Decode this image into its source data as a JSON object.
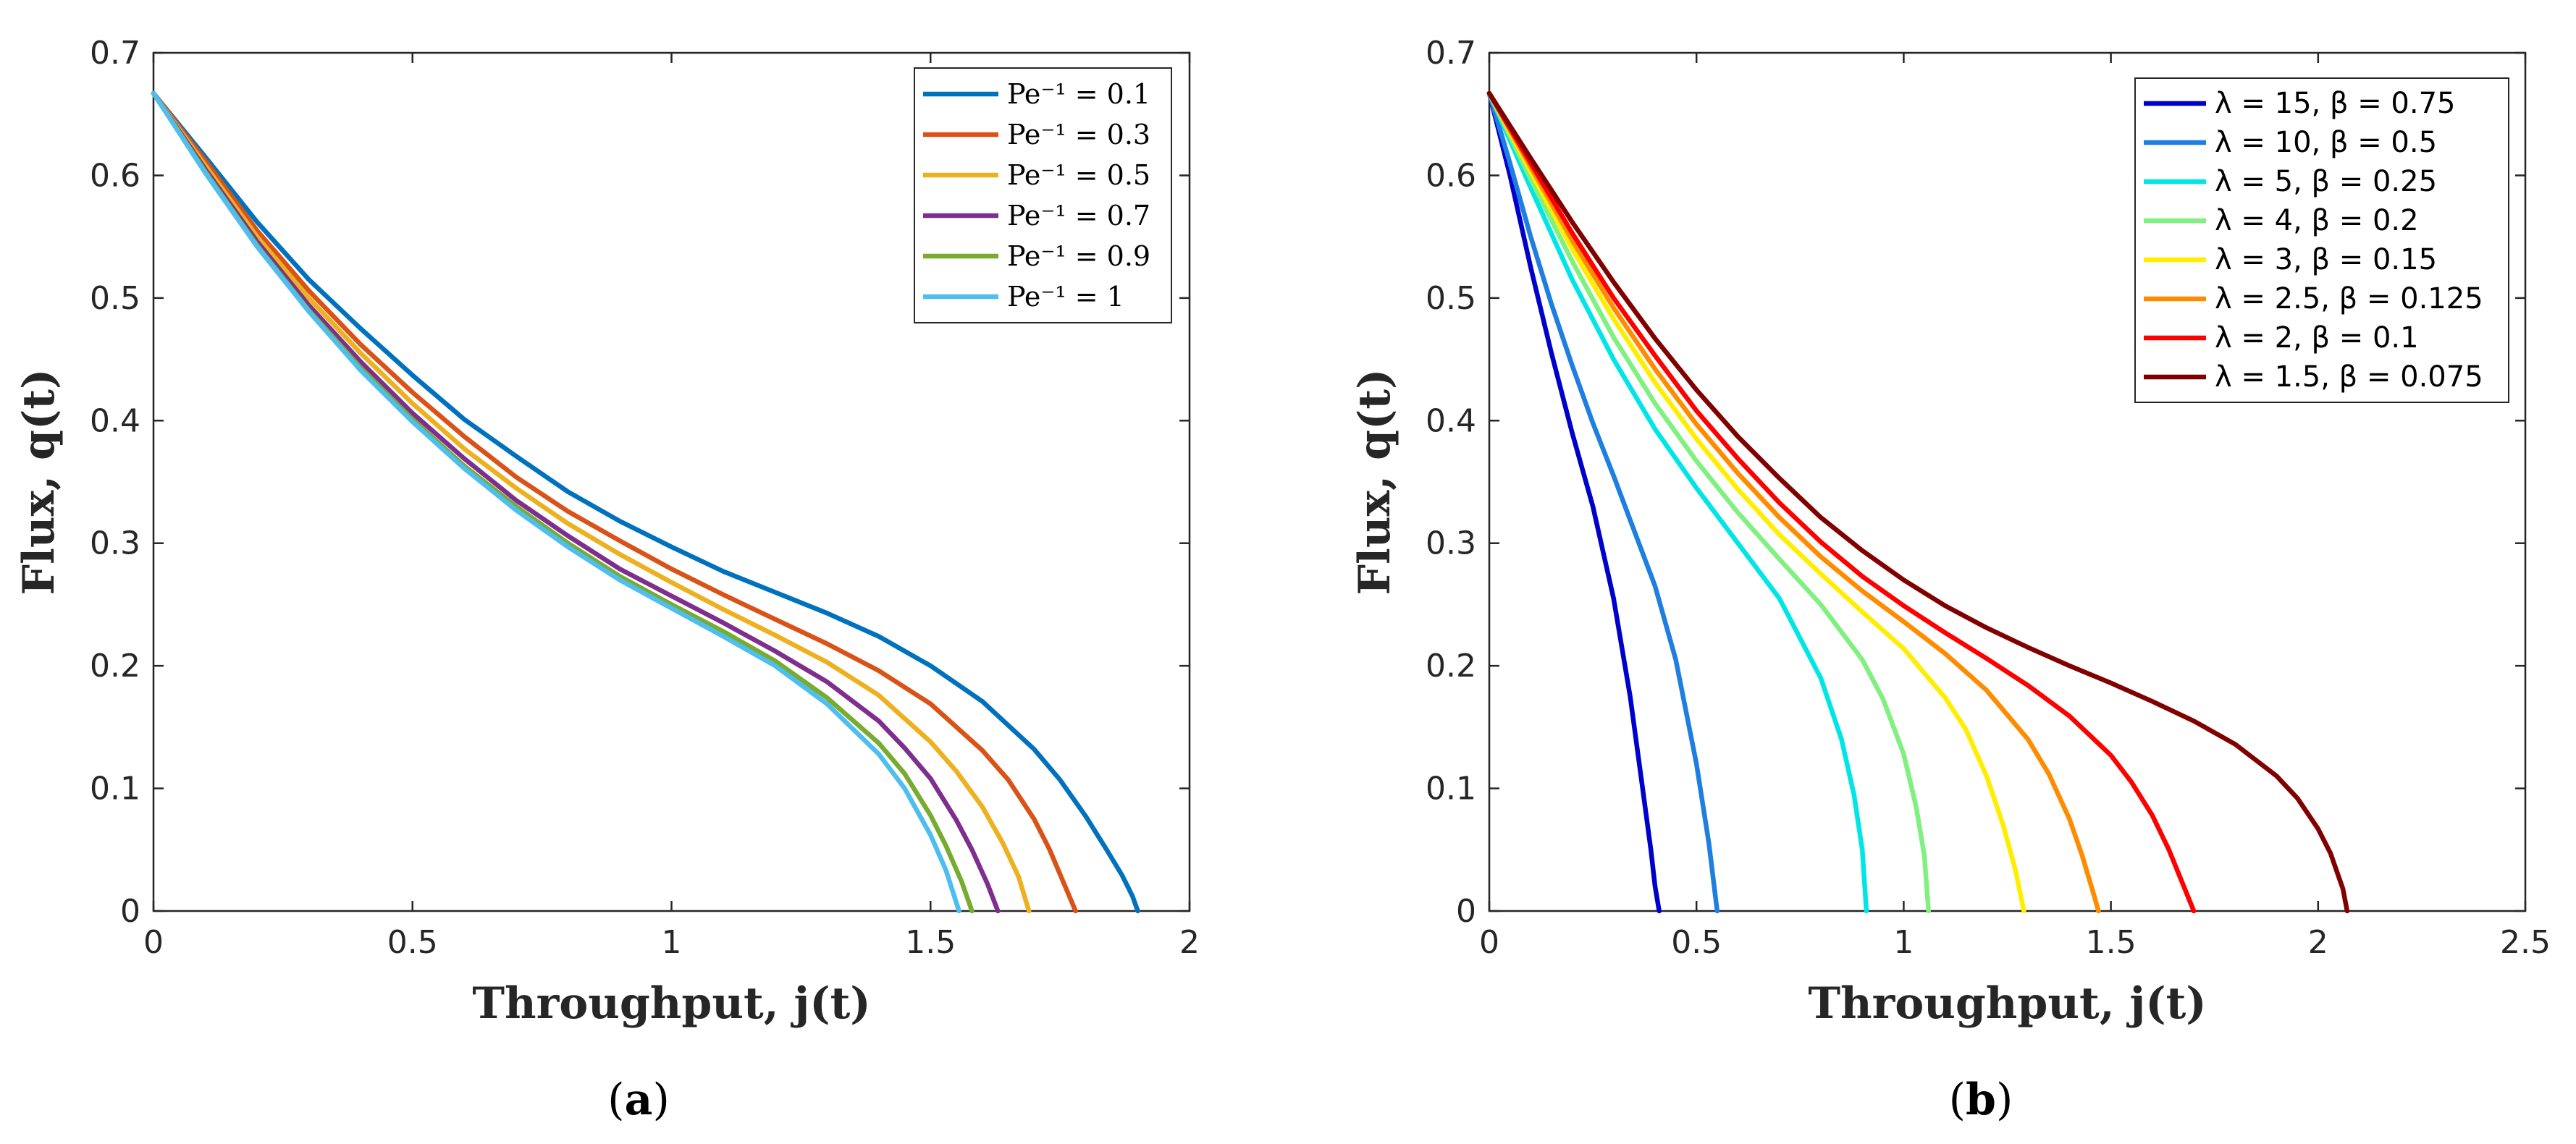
{
  "chart_data": [
    {
      "type": "line",
      "panel_label": "a",
      "caption_open": "(",
      "caption_close": ")",
      "xlabel": "Throughput, j(t)",
      "ylabel": "Flux, q(t)",
      "xlim": [
        0,
        2
      ],
      "ylim": [
        0,
        0.7
      ],
      "xticks": [
        0,
        0.5,
        1,
        1.5,
        2
      ],
      "xtick_labels": [
        "0",
        "0.5",
        "1",
        "1.5",
        "2"
      ],
      "yticks": [
        0,
        0.1,
        0.2,
        0.3,
        0.4,
        0.5,
        0.6,
        0.7
      ],
      "ytick_labels": [
        "0",
        "0.1",
        "0.2",
        "0.3",
        "0.4",
        "0.5",
        "0.6",
        "0.7"
      ],
      "legend_position": "top-right",
      "series": [
        {
          "name": "Pe⁻¹ = 0.1",
          "color": "#0072BD",
          "x": [
            0,
            0.1,
            0.2,
            0.3,
            0.4,
            0.5,
            0.6,
            0.7,
            0.8,
            0.9,
            1.0,
            1.1,
            1.2,
            1.3,
            1.4,
            1.5,
            1.6,
            1.7,
            1.75,
            1.8,
            1.84,
            1.87,
            1.89,
            1.9
          ],
          "y": [
            0.667,
            0.615,
            0.562,
            0.515,
            0.475,
            0.437,
            0.401,
            0.371,
            0.342,
            0.318,
            0.297,
            0.277,
            0.26,
            0.243,
            0.224,
            0.2,
            0.171,
            0.132,
            0.107,
            0.077,
            0.05,
            0.029,
            0.012,
            0
          ]
        },
        {
          "name": "Pe⁻¹ = 0.3",
          "color": "#D95319",
          "x": [
            0,
            0.1,
            0.2,
            0.3,
            0.4,
            0.5,
            0.6,
            0.7,
            0.8,
            0.9,
            1.0,
            1.1,
            1.2,
            1.3,
            1.4,
            1.5,
            1.6,
            1.65,
            1.7,
            1.73,
            1.76,
            1.78
          ],
          "y": [
            0.667,
            0.612,
            0.555,
            0.506,
            0.462,
            0.423,
            0.387,
            0.354,
            0.326,
            0.302,
            0.279,
            0.258,
            0.238,
            0.218,
            0.196,
            0.169,
            0.131,
            0.107,
            0.075,
            0.05,
            0.02,
            0
          ]
        },
        {
          "name": "Pe⁻¹ = 0.5",
          "color": "#EDB120",
          "x": [
            0,
            0.1,
            0.2,
            0.3,
            0.4,
            0.5,
            0.6,
            0.7,
            0.8,
            0.9,
            1.0,
            1.1,
            1.2,
            1.3,
            1.4,
            1.5,
            1.55,
            1.6,
            1.64,
            1.67,
            1.69
          ],
          "y": [
            0.667,
            0.608,
            0.55,
            0.5,
            0.455,
            0.414,
            0.377,
            0.345,
            0.316,
            0.291,
            0.268,
            0.246,
            0.225,
            0.203,
            0.176,
            0.138,
            0.114,
            0.085,
            0.055,
            0.028,
            0
          ]
        },
        {
          "name": "Pe⁻¹ = 0.7",
          "color": "#7E2F8E",
          "x": [
            0,
            0.1,
            0.2,
            0.3,
            0.4,
            0.5,
            0.6,
            0.7,
            0.8,
            0.9,
            1.0,
            1.1,
            1.2,
            1.3,
            1.4,
            1.45,
            1.5,
            1.55,
            1.58,
            1.61,
            1.63
          ],
          "y": [
            0.667,
            0.605,
            0.546,
            0.494,
            0.448,
            0.406,
            0.369,
            0.335,
            0.306,
            0.279,
            0.257,
            0.235,
            0.212,
            0.187,
            0.155,
            0.133,
            0.108,
            0.074,
            0.05,
            0.022,
            0
          ]
        },
        {
          "name": "Pe⁻¹ = 0.9",
          "color": "#77AC30",
          "x": [
            0,
            0.1,
            0.2,
            0.3,
            0.4,
            0.5,
            0.6,
            0.7,
            0.8,
            0.9,
            1.0,
            1.1,
            1.2,
            1.3,
            1.4,
            1.45,
            1.5,
            1.53,
            1.56,
            1.58
          ],
          "y": [
            0.667,
            0.603,
            0.543,
            0.49,
            0.443,
            0.401,
            0.363,
            0.33,
            0.3,
            0.273,
            0.25,
            0.228,
            0.204,
            0.174,
            0.137,
            0.112,
            0.078,
            0.053,
            0.024,
            0
          ]
        },
        {
          "name": "Pe⁻¹ = 1",
          "color": "#4DBEEE",
          "x": [
            0,
            0.1,
            0.2,
            0.3,
            0.4,
            0.5,
            0.6,
            0.7,
            0.8,
            0.9,
            1.0,
            1.1,
            1.2,
            1.3,
            1.4,
            1.45,
            1.5,
            1.53,
            1.555
          ],
          "y": [
            0.667,
            0.602,
            0.542,
            0.489,
            0.441,
            0.399,
            0.361,
            0.327,
            0.297,
            0.27,
            0.247,
            0.224,
            0.2,
            0.169,
            0.128,
            0.1,
            0.062,
            0.033,
            0
          ]
        }
      ]
    },
    {
      "type": "line",
      "panel_label": "b",
      "caption_open": "(",
      "caption_close": ")",
      "xlabel": "Throughput, j(t)",
      "ylabel": "Flux, q(t)",
      "xlim": [
        0,
        2.5
      ],
      "ylim": [
        0,
        0.7
      ],
      "xticks": [
        0,
        0.5,
        1,
        1.5,
        2,
        2.5
      ],
      "xtick_labels": [
        "0",
        "0.5",
        "1",
        "1.5",
        "2",
        "2.5"
      ],
      "yticks": [
        0,
        0.1,
        0.2,
        0.3,
        0.4,
        0.5,
        0.6,
        0.7
      ],
      "ytick_labels": [
        "0",
        "0.1",
        "0.2",
        "0.3",
        "0.4",
        "0.5",
        "0.6",
        "0.7"
      ],
      "legend_position": "top-right",
      "series": [
        {
          "name": "λ = 15, β = 0.75",
          "color": "#0000CD",
          "x": [
            0,
            0.05,
            0.1,
            0.15,
            0.2,
            0.25,
            0.3,
            0.34,
            0.37,
            0.39,
            0.4,
            0.41
          ],
          "y": [
            0.667,
            0.6,
            0.525,
            0.455,
            0.39,
            0.33,
            0.255,
            0.175,
            0.1,
            0.05,
            0.02,
            0
          ]
        },
        {
          "name": "λ = 10, β = 0.5",
          "color": "#1E7FE0",
          "x": [
            0,
            0.05,
            0.1,
            0.15,
            0.2,
            0.25,
            0.3,
            0.35,
            0.4,
            0.45,
            0.5,
            0.53,
            0.55
          ],
          "y": [
            0.667,
            0.61,
            0.55,
            0.495,
            0.445,
            0.398,
            0.355,
            0.31,
            0.265,
            0.205,
            0.12,
            0.055,
            0
          ]
        },
        {
          "name": "λ = 5, β = 0.25",
          "color": "#00E5E5",
          "x": [
            0,
            0.1,
            0.2,
            0.3,
            0.4,
            0.5,
            0.6,
            0.7,
            0.8,
            0.85,
            0.88,
            0.9,
            0.91
          ],
          "y": [
            0.667,
            0.59,
            0.515,
            0.45,
            0.393,
            0.345,
            0.3,
            0.255,
            0.19,
            0.14,
            0.095,
            0.05,
            0
          ]
        },
        {
          "name": "λ = 4, β = 0.2",
          "color": "#80F080",
          "x": [
            0,
            0.1,
            0.2,
            0.3,
            0.4,
            0.5,
            0.6,
            0.7,
            0.8,
            0.9,
            0.95,
            1.0,
            1.03,
            1.05,
            1.06
          ],
          "y": [
            0.667,
            0.597,
            0.53,
            0.468,
            0.414,
            0.367,
            0.325,
            0.287,
            0.25,
            0.205,
            0.173,
            0.128,
            0.085,
            0.045,
            0
          ]
        },
        {
          "name": "λ = 3, β = 0.15",
          "color": "#FFEE00",
          "x": [
            0,
            0.1,
            0.2,
            0.3,
            0.4,
            0.5,
            0.6,
            0.7,
            0.8,
            0.9,
            1.0,
            1.1,
            1.15,
            1.2,
            1.24,
            1.27,
            1.29
          ],
          "y": [
            0.667,
            0.603,
            0.54,
            0.483,
            0.431,
            0.385,
            0.344,
            0.307,
            0.275,
            0.244,
            0.214,
            0.174,
            0.148,
            0.11,
            0.07,
            0.033,
            0
          ]
        },
        {
          "name": "λ = 2.5, β = 0.125",
          "color": "#FF8C00",
          "x": [
            0,
            0.1,
            0.2,
            0.3,
            0.4,
            0.5,
            0.6,
            0.7,
            0.8,
            0.9,
            1.0,
            1.1,
            1.2,
            1.3,
            1.35,
            1.4,
            1.43,
            1.46,
            1.47
          ],
          "y": [
            0.667,
            0.607,
            0.547,
            0.492,
            0.442,
            0.397,
            0.357,
            0.321,
            0.289,
            0.261,
            0.236,
            0.21,
            0.18,
            0.14,
            0.112,
            0.075,
            0.046,
            0.012,
            0
          ]
        },
        {
          "name": "λ = 2, β = 0.1",
          "color": "#FF0000",
          "x": [
            0,
            0.1,
            0.2,
            0.3,
            0.4,
            0.5,
            0.6,
            0.7,
            0.8,
            0.9,
            1.0,
            1.1,
            1.2,
            1.3,
            1.4,
            1.5,
            1.55,
            1.6,
            1.64,
            1.67,
            1.7
          ],
          "y": [
            0.667,
            0.61,
            0.553,
            0.5,
            0.453,
            0.408,
            0.369,
            0.333,
            0.301,
            0.273,
            0.249,
            0.227,
            0.206,
            0.184,
            0.159,
            0.127,
            0.105,
            0.078,
            0.05,
            0.025,
            0
          ]
        },
        {
          "name": "λ = 1.5, β = 0.075",
          "color": "#800000",
          "x": [
            0,
            0.1,
            0.2,
            0.3,
            0.4,
            0.5,
            0.6,
            0.7,
            0.8,
            0.9,
            1.0,
            1.1,
            1.2,
            1.3,
            1.4,
            1.5,
            1.6,
            1.7,
            1.8,
            1.9,
            1.95,
            2.0,
            2.03,
            2.06,
            2.07
          ],
          "y": [
            0.667,
            0.614,
            0.562,
            0.513,
            0.467,
            0.425,
            0.387,
            0.353,
            0.321,
            0.294,
            0.27,
            0.249,
            0.231,
            0.215,
            0.2,
            0.186,
            0.171,
            0.155,
            0.136,
            0.11,
            0.092,
            0.067,
            0.047,
            0.018,
            0
          ]
        }
      ]
    }
  ]
}
